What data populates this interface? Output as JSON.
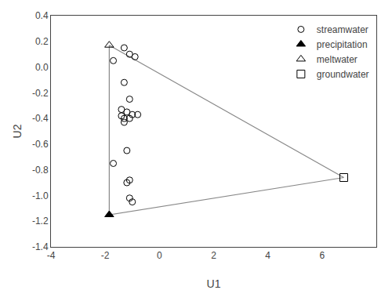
{
  "chart_data": {
    "type": "scatter",
    "xlabel": "U1",
    "ylabel": "U2",
    "xlim": [
      -4,
      8
    ],
    "ylim": [
      -1.4,
      0.4
    ],
    "xticks": [
      -4,
      -2,
      0,
      2,
      4,
      6
    ],
    "yticks": [
      -1.4,
      -1.2,
      {
        "value": -1.0,
        "label": "-1.0"
      },
      -0.8,
      -0.6,
      -0.4,
      -0.2,
      {
        "value": 0.0,
        "label": "0.0"
      },
      0.2,
      0.4
    ],
    "grid": false,
    "legend": "upper right",
    "series": [
      {
        "type": "line",
        "color": "#888888",
        "line_style": "solid",
        "x": [
          -1.85,
          -1.85,
          6.8,
          -1.85
        ],
        "values": [
          0.17,
          -1.15,
          -0.86,
          0.17
        ]
      },
      {
        "name": "streamwater",
        "type": "scatter",
        "marker": "circle-open",
        "color": "black",
        "x": [
          -1.7,
          -1.3,
          -1.1,
          -0.9,
          -1.3,
          -1.1,
          -1.4,
          -1.2,
          -1.0,
          -0.8,
          -1.4,
          -1.3,
          -1.1,
          -1.3,
          -1.7,
          -1.2,
          -1.1,
          -1.2,
          -1.1,
          -1.0
        ],
        "values": [
          0.05,
          0.15,
          0.1,
          0.08,
          -0.12,
          -0.25,
          -0.33,
          -0.35,
          -0.37,
          -0.37,
          -0.38,
          -0.4,
          -0.4,
          -0.43,
          -0.75,
          -0.65,
          -0.88,
          -0.9,
          -1.02,
          -1.05
        ]
      },
      {
        "name": "precipitation",
        "type": "scatter",
        "marker": "triangle-up",
        "color": "black",
        "x": [
          -1.85
        ],
        "values": [
          -1.15
        ]
      },
      {
        "name": "meltwater",
        "type": "scatter",
        "marker": "triangle-up-open",
        "color": "black",
        "x": [
          -1.85
        ],
        "values": [
          0.17
        ]
      },
      {
        "name": "groundwater",
        "type": "scatter",
        "marker": "square-open",
        "color": "black",
        "x": [
          6.8
        ],
        "values": [
          -0.86
        ]
      }
    ]
  }
}
